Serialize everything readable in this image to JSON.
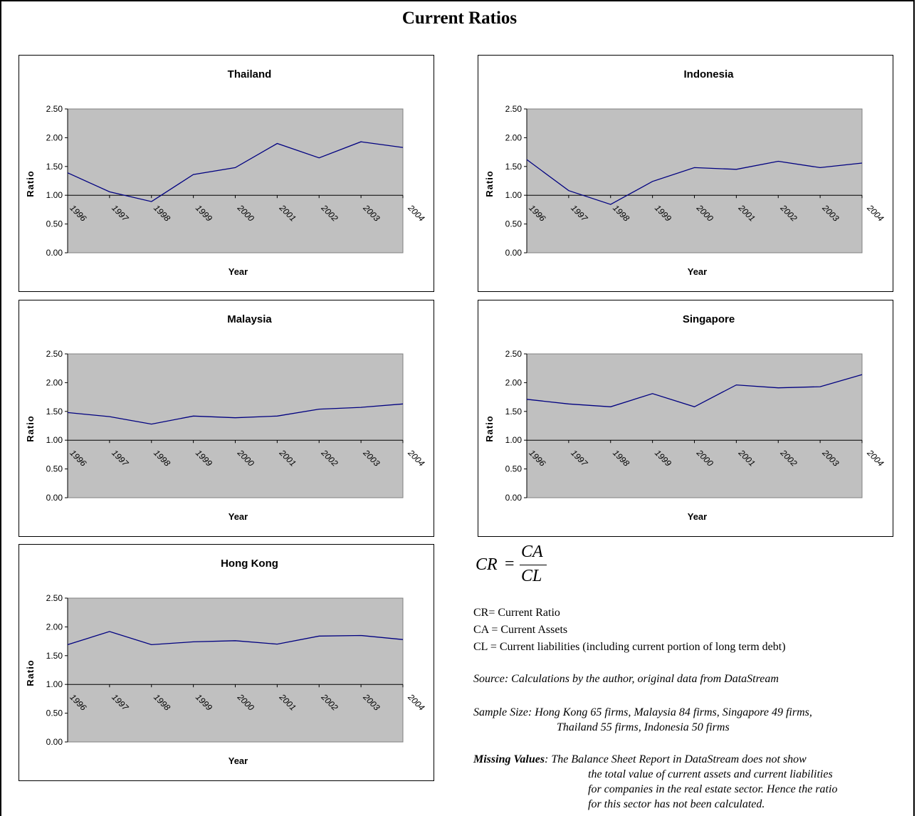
{
  "page_title": "Current Ratios",
  "chart_data": [
    {
      "type": "line",
      "title": "Thailand",
      "xlabel": "Year",
      "ylabel": "Ratio",
      "categories": [
        "1996",
        "1997",
        "1998",
        "1999",
        "2000",
        "2001",
        "2002",
        "2003",
        "2004"
      ],
      "values": [
        1.39,
        1.06,
        0.89,
        1.36,
        1.48,
        1.9,
        1.65,
        1.93,
        1.83
      ],
      "ylim": [
        0,
        2.5
      ],
      "yticks": [
        "0.00",
        "0.50",
        "1.00",
        "1.50",
        "2.00",
        "2.50"
      ],
      "grid": false,
      "plot_background": "#c0c0c0",
      "line_color": "#000080"
    },
    {
      "type": "line",
      "title": "Indonesia",
      "xlabel": "Year",
      "ylabel": "Ratio",
      "categories": [
        "1996",
        "1997",
        "1998",
        "1999",
        "2000",
        "2001",
        "2002",
        "2003",
        "2004"
      ],
      "values": [
        1.62,
        1.08,
        0.84,
        1.24,
        1.48,
        1.45,
        1.59,
        1.48,
        1.56
      ],
      "ylim": [
        0,
        2.5
      ],
      "yticks": [
        "0.00",
        "0.50",
        "1.00",
        "1.50",
        "2.00",
        "2.50"
      ],
      "grid": false,
      "plot_background": "#c0c0c0",
      "line_color": "#000080"
    },
    {
      "type": "line",
      "title": "Malaysia",
      "xlabel": "Year",
      "ylabel": "Ratio",
      "categories": [
        "1996",
        "1997",
        "1998",
        "1999",
        "2000",
        "2001",
        "2002",
        "2003",
        "2004"
      ],
      "values": [
        1.48,
        1.41,
        1.28,
        1.42,
        1.39,
        1.42,
        1.54,
        1.57,
        1.63
      ],
      "ylim": [
        0,
        2.5
      ],
      "yticks": [
        "0.00",
        "0.50",
        "1.00",
        "1.50",
        "2.00",
        "2.50"
      ],
      "grid": false,
      "plot_background": "#c0c0c0",
      "line_color": "#000080"
    },
    {
      "type": "line",
      "title": "Singapore",
      "xlabel": "Year",
      "ylabel": "Ratio",
      "categories": [
        "1996",
        "1997",
        "1998",
        "1999",
        "2000",
        "2001",
        "2002",
        "2003",
        "2004"
      ],
      "values": [
        1.71,
        1.63,
        1.58,
        1.81,
        1.58,
        1.96,
        1.91,
        1.93,
        2.14
      ],
      "ylim": [
        0,
        2.5
      ],
      "yticks": [
        "0.00",
        "0.50",
        "1.00",
        "1.50",
        "2.00",
        "2.50"
      ],
      "grid": false,
      "plot_background": "#c0c0c0",
      "line_color": "#000080"
    },
    {
      "type": "line",
      "title": "Hong Kong",
      "xlabel": "Year",
      "ylabel": "Ratio",
      "categories": [
        "1996",
        "1997",
        "1998",
        "1999",
        "2000",
        "2001",
        "2002",
        "2003",
        "2004"
      ],
      "values": [
        1.69,
        1.92,
        1.69,
        1.74,
        1.76,
        1.7,
        1.84,
        1.85,
        1.78
      ],
      "ylim": [
        0,
        2.5
      ],
      "yticks": [
        "0.00",
        "0.50",
        "1.00",
        "1.50",
        "2.00",
        "2.50"
      ],
      "grid": false,
      "plot_background": "#c0c0c0",
      "line_color": "#000080"
    }
  ],
  "formula": {
    "lhs": "CR",
    "eq": "=",
    "numerator": "CA",
    "denominator": "CL"
  },
  "definitions": [
    "CR= Current Ratio",
    "CA = Current Assets",
    "CL = Current liabilities (including current portion of long term debt)"
  ],
  "source_note": "Source: Calculations by the author, original data from DataStream",
  "sample_size": {
    "line1": "Sample Size: Hong Kong 65 firms, Malaysia 84 firms, Singapore 49 firms,",
    "line2": "Thailand 55 firms, Indonesia 50 firms"
  },
  "missing_values": {
    "label": "Missing Values",
    "line1": ": The Balance Sheet Report in DataStream does not show",
    "line2": "the total value of current assets and current liabilities",
    "line3": "for companies in the real estate sector. Hence the ratio",
    "line4": "for this sector has not been calculated."
  }
}
